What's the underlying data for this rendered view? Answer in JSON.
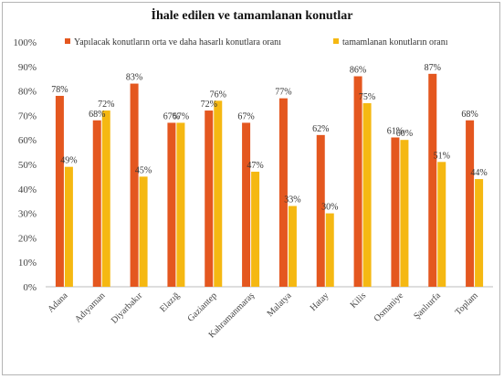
{
  "chart_data": {
    "type": "bar",
    "title": "İhale edilen  ve tamamlanan konutlar",
    "categories": [
      "Adana",
      "Adıyaman",
      "Diyarbakır",
      "Elazığ",
      "Gaziantep",
      "Kahramanmaraş",
      "Malatya",
      "Hatay",
      "Kilis",
      "Osmaniye",
      "Şanlıurfa",
      "Toplam"
    ],
    "series": [
      {
        "name": "Yapılacak konutların orta ve daha hasarlı konutlara oranı",
        "color": "#E4571F",
        "values": [
          78,
          68,
          83,
          67,
          72,
          67,
          77,
          62,
          86,
          61,
          87,
          68
        ],
        "labels": [
          "78%",
          "68%",
          "83%",
          "67%",
          "72%",
          "67%",
          "77%",
          "62%",
          "86%",
          "61%",
          "87%",
          "68%"
        ]
      },
      {
        "name": "tamamlanan konutların oranı",
        "color": "#F5B812",
        "values": [
          49,
          72,
          45,
          67,
          76,
          47,
          33,
          30,
          75,
          60,
          51,
          44
        ],
        "labels": [
          "49%",
          "72%",
          "45%",
          "67%",
          "76%",
          "47%",
          "33%",
          "30%",
          "75%",
          "60%",
          "51%",
          "44%"
        ]
      }
    ],
    "ylim": [
      0,
      100
    ],
    "yticks": [
      "0%",
      "10%",
      "20%",
      "30%",
      "40%",
      "50%",
      "60%",
      "70%",
      "80%",
      "90%",
      "100%"
    ],
    "grid": false,
    "legend_position": "top"
  }
}
